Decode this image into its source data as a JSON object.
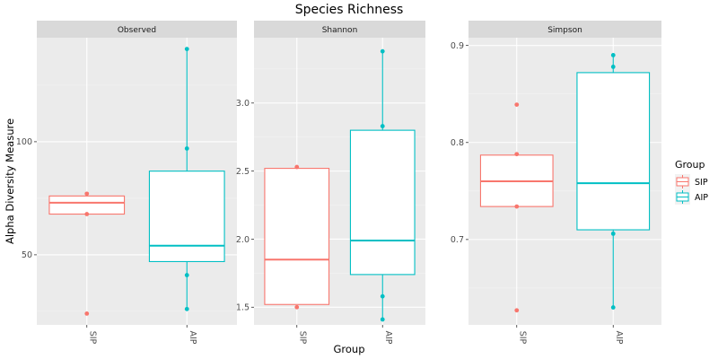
{
  "chart_data": {
    "type": "box",
    "title": "Species Richness",
    "xlabel": "Group",
    "ylabel": "Alpha Diversity Measure",
    "categories": [
      "SIP",
      "AIP"
    ],
    "colors": {
      "SIP": "#F8766D",
      "AIP": "#00BFC4"
    },
    "legend": {
      "title": "Group",
      "position": "right",
      "entries": [
        "SIP",
        "AIP"
      ]
    },
    "grid": true,
    "facets": [
      {
        "label": "Observed",
        "ylim": [
          19,
          146
        ],
        "yticks": [
          50,
          100
        ],
        "boxes": [
          {
            "group": "SIP",
            "q1": 68,
            "median": 73,
            "q3": 76,
            "whisker_low": 68,
            "whisker_high": 77,
            "points": [
              24,
              68,
              77
            ]
          },
          {
            "group": "AIP",
            "q1": 47,
            "median": 54,
            "q3": 87,
            "whisker_low": 26,
            "whisker_high": 141,
            "points": [
              26,
              41,
              97,
              141
            ]
          }
        ]
      },
      {
        "label": "Shannon",
        "ylim": [
          1.37,
          3.48
        ],
        "yticks": [
          1.5,
          2.0,
          2.5,
          3.0
        ],
        "boxes": [
          {
            "group": "SIP",
            "q1": 1.52,
            "median": 1.85,
            "q3": 2.52,
            "whisker_low": 1.52,
            "whisker_high": 2.53,
            "points": [
              1.5,
              2.53
            ]
          },
          {
            "group": "AIP",
            "q1": 1.74,
            "median": 1.99,
            "q3": 2.8,
            "whisker_low": 1.41,
            "whisker_high": 3.38,
            "points": [
              1.41,
              1.58,
              2.83,
              3.38
            ]
          }
        ]
      },
      {
        "label": "Simpson",
        "ylim": [
          0.612,
          0.908
        ],
        "yticks": [
          0.7,
          0.8,
          0.9
        ],
        "boxes": [
          {
            "group": "SIP",
            "q1": 0.734,
            "median": 0.76,
            "q3": 0.787,
            "whisker_low": 0.734,
            "whisker_high": 0.787,
            "points": [
              0.627,
              0.734,
              0.788,
              0.839
            ]
          },
          {
            "group": "AIP",
            "q1": 0.71,
            "median": 0.758,
            "q3": 0.872,
            "whisker_low": 0.63,
            "whisker_high": 0.89,
            "points": [
              0.63,
              0.706,
              0.878,
              0.89
            ]
          }
        ]
      }
    ]
  }
}
